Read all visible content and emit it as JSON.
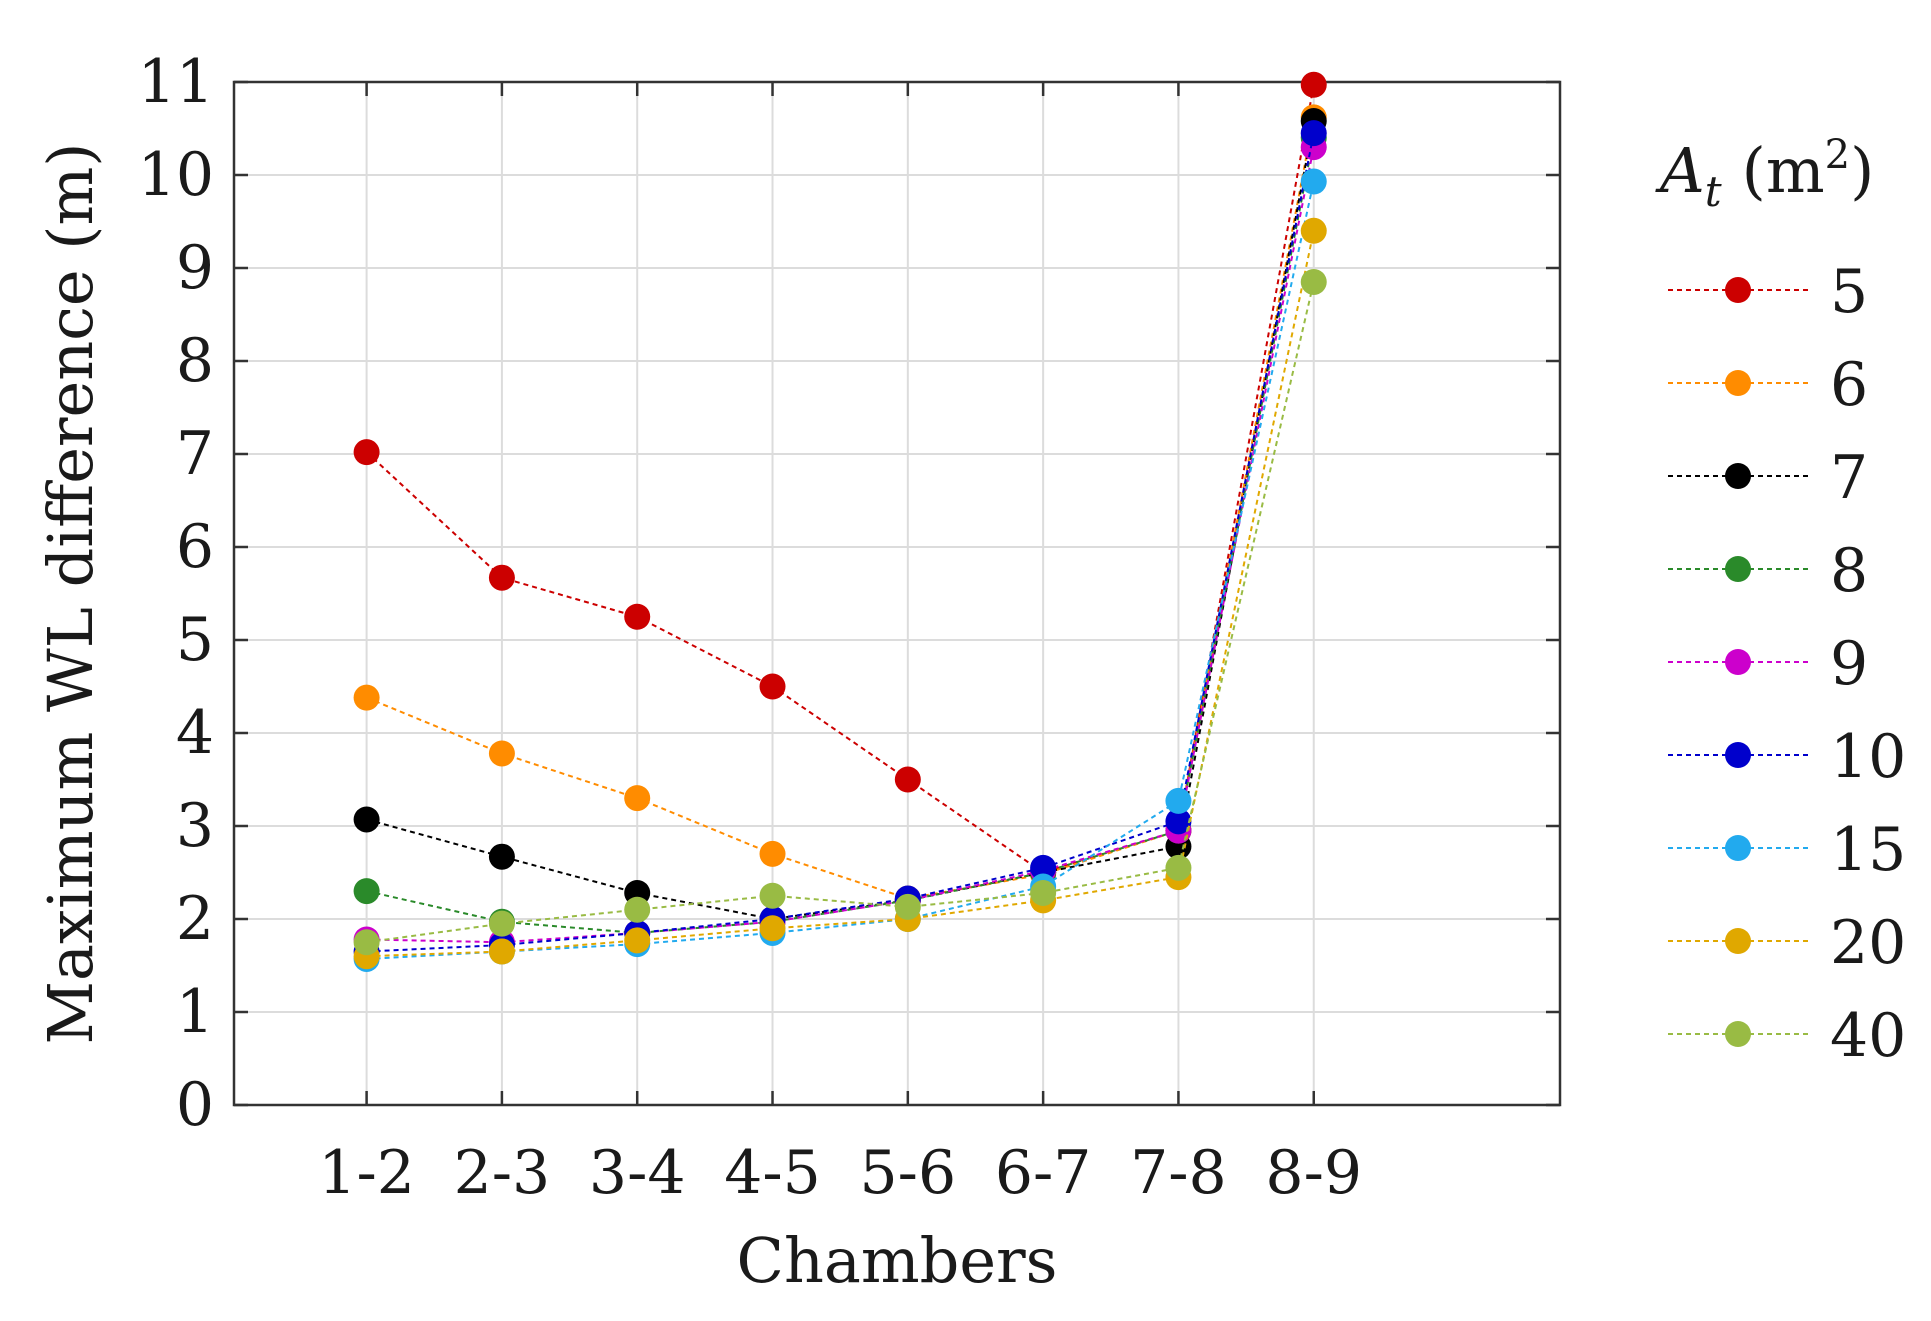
{
  "chart_data": {
    "type": "line",
    "xlabel": "Chambers",
    "ylabel": "Maximum WL difference (m)",
    "categories": [
      "1-2",
      "2-3",
      "3-4",
      "4-5",
      "5-6",
      "6-7",
      "7-8",
      "8-9"
    ],
    "ylim": [
      0,
      11
    ],
    "yticks": [
      "0",
      "1",
      "2",
      "3",
      "4",
      "5",
      "6",
      "7",
      "8",
      "9",
      "10",
      "11"
    ],
    "grid": true,
    "legend": {
      "title_main": "A",
      "title_sub": "t",
      "title_unit": "(m",
      "title_sup": "2",
      "title_close": ")",
      "placement": "right"
    },
    "series": [
      {
        "name": "5",
        "color": "#cc0000",
        "values": [
          7.02,
          5.67,
          5.25,
          4.5,
          3.5,
          2.5,
          2.95,
          10.97
        ]
      },
      {
        "name": "6",
        "color": "#ff8c00",
        "values": [
          4.38,
          3.78,
          3.3,
          2.7,
          2.22,
          2.48,
          2.95,
          10.62
        ]
      },
      {
        "name": "7",
        "color": "#000000",
        "values": [
          3.07,
          2.67,
          2.28,
          2.0,
          2.2,
          2.5,
          2.78,
          10.58
        ]
      },
      {
        "name": "8",
        "color": "#2a8a2a",
        "values": [
          2.3,
          1.97,
          1.85,
          1.97,
          2.2,
          2.5,
          2.95,
          10.4
        ]
      },
      {
        "name": "9",
        "color": "#cc00cc",
        "values": [
          1.78,
          1.75,
          1.85,
          1.97,
          2.2,
          2.52,
          2.95,
          10.3
        ]
      },
      {
        "name": "10",
        "color": "#0000cc",
        "values": [
          1.65,
          1.72,
          1.85,
          2.0,
          2.22,
          2.55,
          3.05,
          10.45
        ]
      },
      {
        "name": "15",
        "color": "#22aaee",
        "values": [
          1.57,
          1.65,
          1.73,
          1.85,
          2.0,
          2.35,
          3.27,
          9.93
        ]
      },
      {
        "name": "20",
        "color": "#e0a800",
        "values": [
          1.6,
          1.65,
          1.77,
          1.9,
          2.0,
          2.2,
          2.45,
          9.4
        ]
      },
      {
        "name": "40",
        "color": "#99bb44",
        "values": [
          1.75,
          1.95,
          2.1,
          2.25,
          2.13,
          2.28,
          2.55,
          8.85
        ]
      }
    ]
  }
}
